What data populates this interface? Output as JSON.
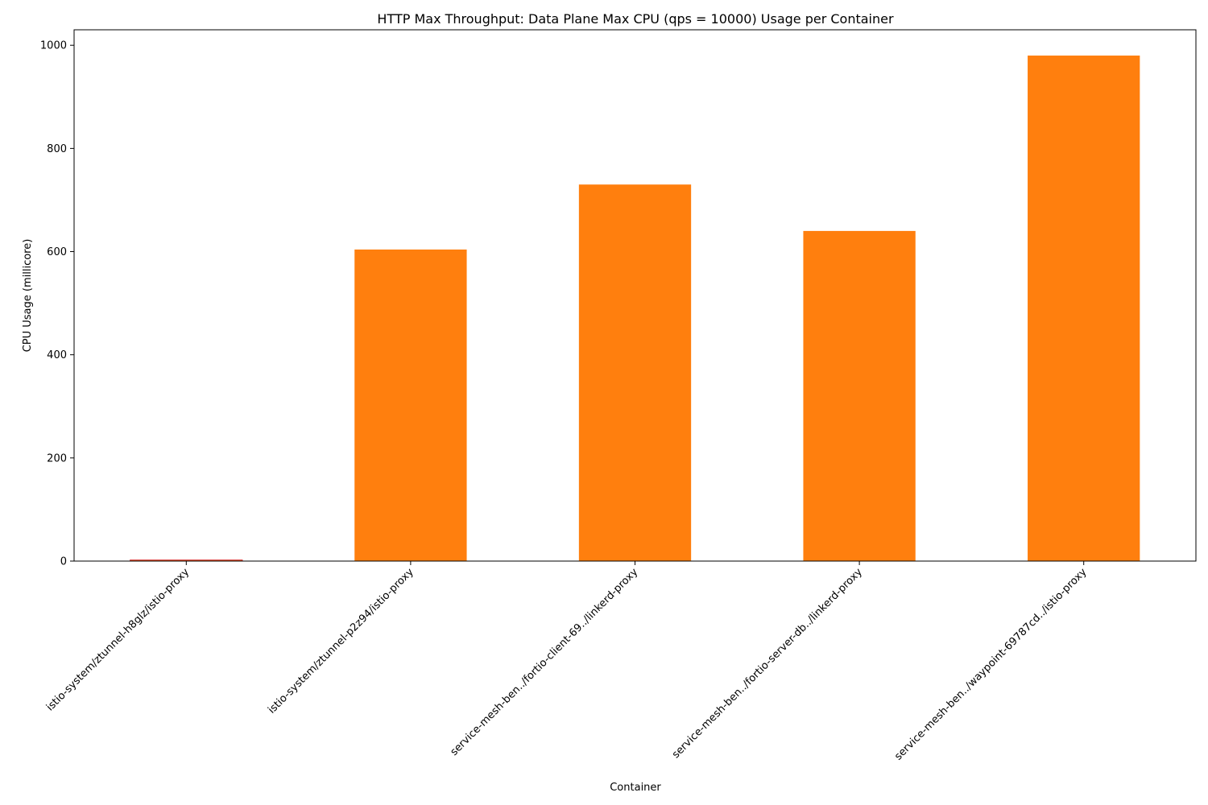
{
  "chart_data": {
    "type": "bar",
    "title": "HTTP Max Throughput: Data Plane Max CPU (qps = 10000) Usage per Container",
    "xlabel": "Container",
    "ylabel": "CPU Usage (millicore)",
    "categories": [
      "istio-system/ztunnel-h8glz/istio-proxy",
      "istio-system/ztunnel-p2z94/istio-proxy",
      "service-mesh-ben../fortio-client-69../linkerd-proxy",
      "service-mesh-ben../fortio-server-db../linkerd-proxy",
      "service-mesh-ben../waypoint-69787cd../istio-proxy"
    ],
    "values": [
      2,
      604,
      730,
      640,
      980
    ],
    "ylim": [
      0,
      1030
    ],
    "yticks": [
      0,
      200,
      400,
      600,
      800,
      1000
    ],
    "grid": false,
    "legend": "none",
    "colors": {
      "bar": "#ff7f0e",
      "first_bar_edge": "#d62728",
      "axis": "#000000",
      "background": "#ffffff"
    }
  }
}
